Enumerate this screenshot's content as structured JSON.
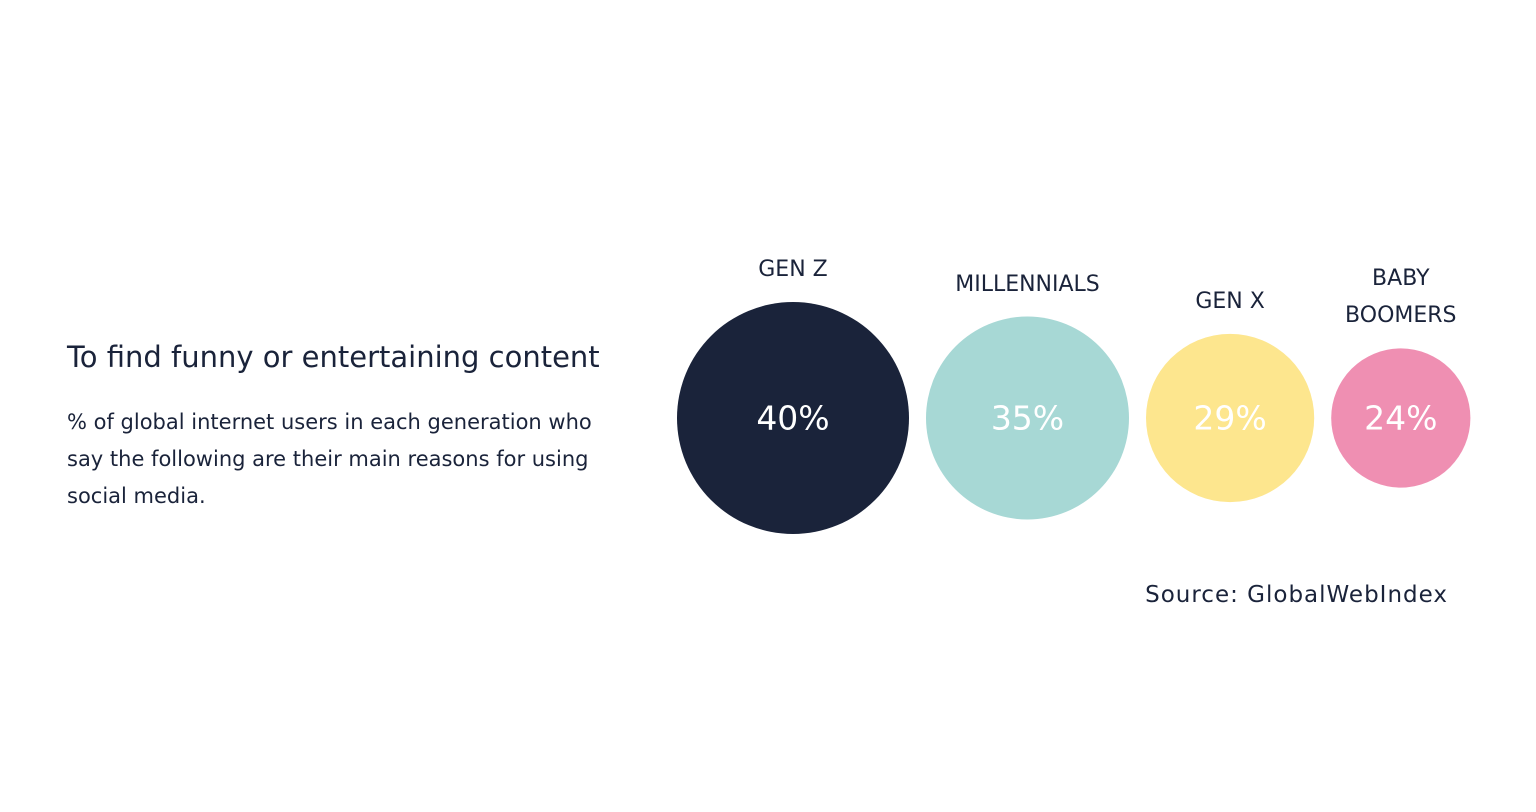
{
  "chart_data": {
    "type": "bubble",
    "title": "To find funny or entertaining content",
    "subtitle": "% of global internet users in each generation who say the following are their main reasons for using social media.",
    "source": "Source: GlobalWebIndex",
    "categories": [
      "GEN Z",
      "MILLENNIALS",
      "GEN X",
      "BABY BOOMERS"
    ],
    "values": [
      40,
      35,
      29,
      24
    ],
    "value_labels": [
      "40%",
      "35%",
      "29%",
      "24%"
    ],
    "colors": [
      "#1a233a",
      "#a7d8d5",
      "#fde68e",
      "#ef8fb2"
    ]
  }
}
